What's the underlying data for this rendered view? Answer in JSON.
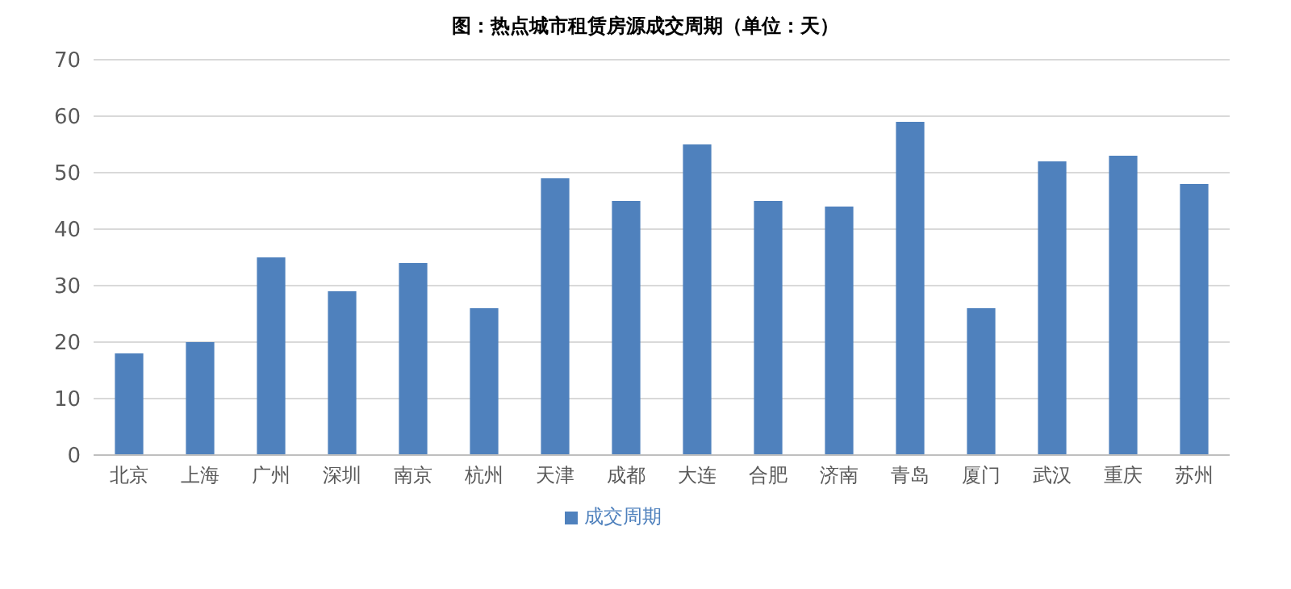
{
  "chart_data": {
    "type": "bar",
    "title": "图：热点城市租赁房源成交周期（单位：天）",
    "categories": [
      "北京",
      "上海",
      "广州",
      "深圳",
      "南京",
      "杭州",
      "天津",
      "成都",
      "大连",
      "合肥",
      "济南",
      "青岛",
      "厦门",
      "武汉",
      "重庆",
      "苏州"
    ],
    "series": [
      {
        "name": "成交周期",
        "color": "#4f81bd",
        "values": [
          18,
          20,
          35,
          29,
          34,
          26,
          49,
          45,
          55,
          45,
          44,
          59,
          26,
          52,
          53,
          48
        ]
      }
    ],
    "ylim": [
      0,
      70
    ],
    "yticks": [
      0,
      10,
      20,
      30,
      40,
      50,
      60,
      70
    ],
    "grid": "y",
    "legend": "bottom"
  }
}
